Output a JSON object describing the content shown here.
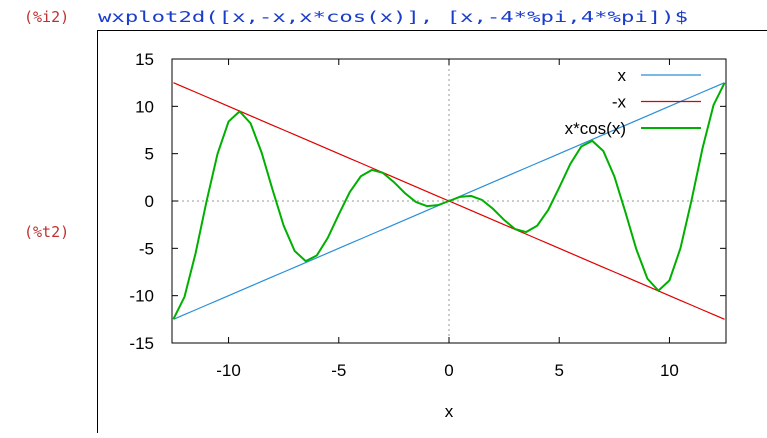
{
  "input": {
    "label": "(%i2)",
    "code": "wxplot2d([x,-x,x*cos(x)], [x,-4*%pi,4*%pi])$"
  },
  "output": {
    "label": "(%t2)"
  },
  "chart_data": {
    "type": "line",
    "xlabel": "x",
    "x": [
      -12.5,
      -12,
      -11.5,
      -11,
      -10.5,
      -10,
      -9.5,
      -9,
      -8.5,
      -8,
      -7.5,
      -7,
      -6.5,
      -6,
      -5.5,
      -5,
      -4.5,
      -4,
      -3.5,
      -3,
      -2.5,
      -2,
      -1.5,
      -1,
      -0.5,
      0,
      0.5,
      1,
      1.5,
      2,
      2.5,
      3,
      3.5,
      4,
      4.5,
      5,
      5.5,
      6,
      6.5,
      7,
      7.5,
      8,
      8.5,
      9,
      9.5,
      10,
      10.5,
      11,
      11.5,
      12,
      12.5
    ],
    "series": [
      {
        "name": "x",
        "color": "#2a8fd8",
        "values": [
          -12.5,
          -12,
          -11.5,
          -11,
          -10.5,
          -10,
          -9.5,
          -9,
          -8.5,
          -8,
          -7.5,
          -7,
          -6.5,
          -6,
          -5.5,
          -5,
          -4.5,
          -4,
          -3.5,
          -3,
          -2.5,
          -2,
          -1.5,
          -1,
          -0.5,
          0,
          0.5,
          1,
          1.5,
          2,
          2.5,
          3,
          3.5,
          4,
          4.5,
          5,
          5.5,
          6,
          6.5,
          7,
          7.5,
          8,
          8.5,
          9,
          9.5,
          10,
          10.5,
          11,
          11.5,
          12,
          12.5
        ]
      },
      {
        "name": "-x",
        "color": "#e00000",
        "values": [
          12.5,
          12,
          11.5,
          11,
          10.5,
          10,
          9.5,
          9,
          8.5,
          8,
          7.5,
          7,
          6.5,
          6,
          5.5,
          5,
          4.5,
          4,
          3.5,
          3,
          2.5,
          2,
          1.5,
          1,
          0.5,
          0,
          -0.5,
          -1,
          -1.5,
          -2,
          -2.5,
          -3,
          -3.5,
          -4,
          -4.5,
          -5,
          -5.5,
          -6,
          -6.5,
          -7,
          -7.5,
          -8,
          -8.5,
          -9,
          -9.5,
          -10,
          -10.5,
          -11,
          -11.5,
          -12,
          -12.5
        ]
      },
      {
        "name": "x*cos(x)",
        "color": "#00b000",
        "values": [
          -12.47,
          -10.13,
          -5.56,
          -0.05,
          4.99,
          8.39,
          9.47,
          8.2,
          5.11,
          1.16,
          -2.6,
          -5.28,
          -6.35,
          -5.76,
          -3.9,
          -1.42,
          0.95,
          2.61,
          3.28,
          2.97,
          2.0,
          0.83,
          -0.11,
          -0.54,
          -0.44,
          0,
          0.44,
          0.54,
          0.11,
          -0.83,
          -2.0,
          -2.97,
          -3.28,
          -2.61,
          -0.95,
          1.42,
          3.9,
          5.76,
          6.35,
          5.28,
          2.6,
          -1.16,
          -5.11,
          -8.2,
          -9.47,
          -8.39,
          -4.99,
          0.05,
          5.56,
          10.13,
          12.47
        ]
      }
    ],
    "xlim": [
      -12.566,
      12.566
    ],
    "xticks": [
      -10,
      -5,
      0,
      5,
      10
    ],
    "ylim": [
      -15,
      15
    ],
    "yticks": [
      -15,
      -10,
      -5,
      0,
      5,
      10,
      15
    ],
    "zero_axes": true,
    "legend": "top-right"
  }
}
